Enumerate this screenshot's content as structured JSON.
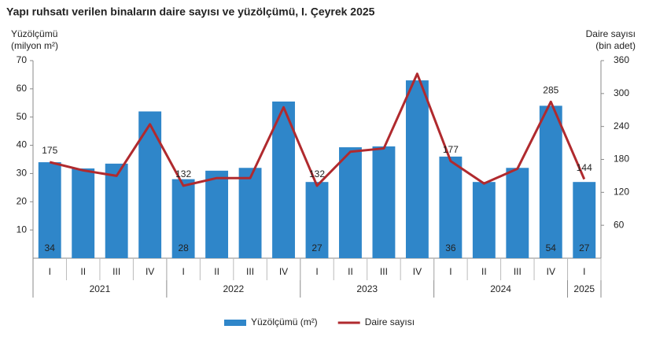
{
  "chart_data": {
    "type": "bar-line",
    "title": "Yapı ruhsatı verilen binaların daire sayısı ve yüzölçümü, I. Çeyrek 2025",
    "y_label": [
      "Yüzölçümü",
      "(milyon m²)"
    ],
    "y2_label": [
      "Daire sayısı",
      "(bin adet)"
    ],
    "groups": [
      {
        "label": "2021",
        "categories": [
          "I",
          "II",
          "III",
          "IV"
        ]
      },
      {
        "label": "2022",
        "categories": [
          "I",
          "II",
          "III",
          "IV"
        ]
      },
      {
        "label": "2023",
        "categories": [
          "I",
          "II",
          "III",
          "IV"
        ]
      },
      {
        "label": "2024",
        "categories": [
          "I",
          "II",
          "III",
          "IV"
        ]
      },
      {
        "label": "2025",
        "categories": [
          "I"
        ]
      }
    ],
    "series": [
      {
        "name": "Yüzölçümü (m²)",
        "type": "bar",
        "color": "#2f86c9",
        "values": [
          34,
          31.8,
          33.5,
          52,
          28,
          31,
          32,
          55.5,
          27,
          39.3,
          39.6,
          63,
          36,
          27,
          32,
          54,
          27
        ],
        "value_labels": [
          "34",
          null,
          null,
          null,
          "28",
          null,
          null,
          null,
          "27",
          null,
          null,
          null,
          "36",
          null,
          null,
          "54",
          "27"
        ]
      },
      {
        "name": "Daire sayısı",
        "type": "line",
        "axis": "y2",
        "color": "#b02a2e",
        "values": [
          175,
          160,
          150,
          244,
          132,
          146,
          146,
          275,
          132,
          194,
          200,
          336,
          177,
          136,
          163,
          285,
          144
        ],
        "value_labels": [
          "175",
          null,
          null,
          null,
          "132",
          null,
          null,
          null,
          "132",
          null,
          null,
          null,
          "177",
          null,
          null,
          "285",
          "144"
        ]
      }
    ],
    "ylim": [
      0,
      70
    ],
    "yticks": [
      10,
      20,
      30,
      40,
      50,
      60,
      70
    ],
    "y2lim": [
      0,
      360
    ],
    "y2ticks": [
      60,
      120,
      180,
      240,
      300,
      360
    ]
  }
}
